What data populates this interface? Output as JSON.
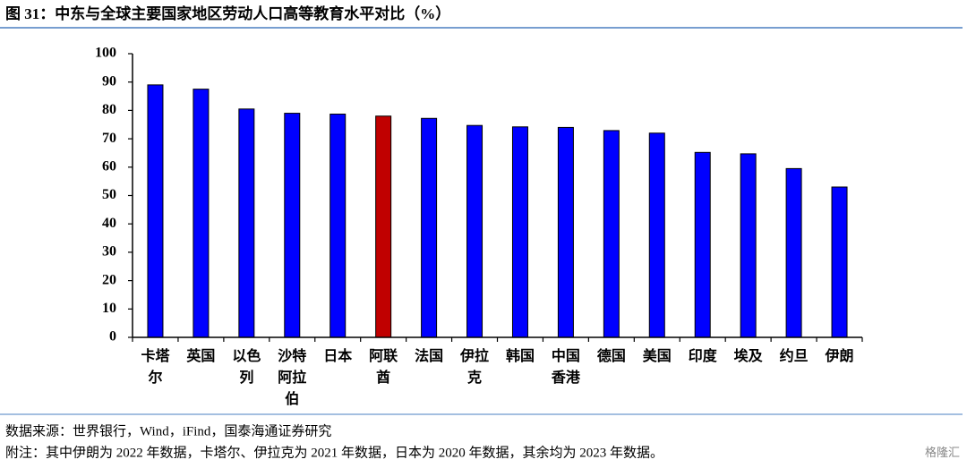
{
  "chart_data": {
    "type": "bar",
    "title": "图 31：中东与全球主要国家地区劳动人口高等教育水平对比（%）",
    "categories": [
      "卡塔尔",
      "英国",
      "以色列",
      "沙特阿拉伯",
      "日本",
      "阿联酋",
      "法国",
      "伊拉克",
      "韩国",
      "中国香港",
      "德国",
      "美国",
      "印度",
      "埃及",
      "约旦",
      "伊朗"
    ],
    "values": [
      89,
      87.5,
      80.5,
      79,
      78.7,
      78,
      77.2,
      74.7,
      74.2,
      74,
      72.9,
      72,
      65.2,
      64.7,
      59.5,
      53
    ],
    "colors": [
      "#0000ff",
      "#0000ff",
      "#0000ff",
      "#0000ff",
      "#0000ff",
      "#c00000",
      "#0000ff",
      "#0000ff",
      "#0000ff",
      "#0000ff",
      "#0000ff",
      "#0000ff",
      "#0000ff",
      "#0000ff",
      "#0000ff",
      "#0000ff"
    ],
    "ylim": [
      0,
      100
    ],
    "yticks": [
      0,
      10,
      20,
      30,
      40,
      50,
      60,
      70,
      80,
      90,
      100
    ],
    "grid": false
  },
  "source": "数据来源：世界银行，Wind，iFind，国泰海通证券研究",
  "note": "附注：其中伊朗为 2022 年数据，卡塔尔、伊拉克为 2021 年数据，日本为 2020 年数据，其余均为 2023 年数据。",
  "watermark": "格隆汇"
}
